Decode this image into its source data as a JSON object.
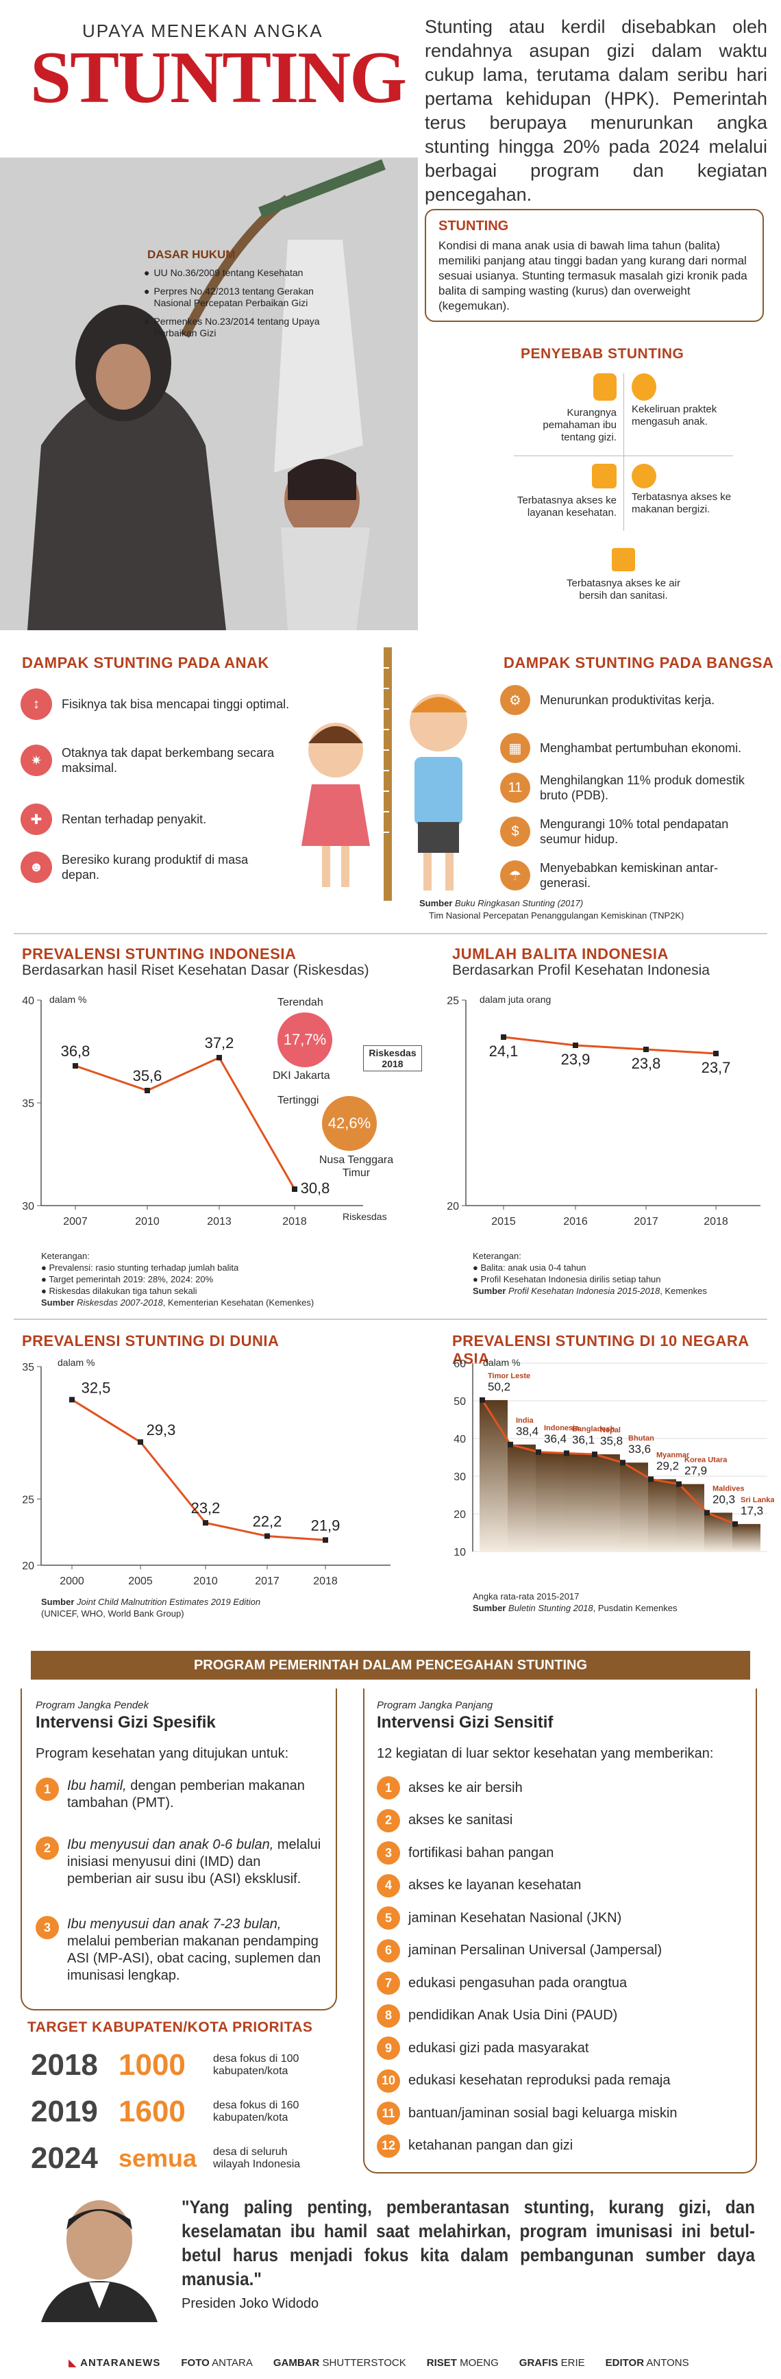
{
  "header": {
    "kicker": "UPAYA MENEKAN ANGKA",
    "title": "STUNTING",
    "intro": "Stunting atau kerdil disebabkan oleh rendahnya asupan gizi dalam waktu cukup lama, terutama dalam seribu hari pertama kehidupan (HPK). Pemerintah terus berupaya menurunkan angka stunting hingga 20% pada 2024 melalui berbagai program dan kegiatan pencegahan."
  },
  "dasar_hukum": {
    "title": "DASAR HUKUM",
    "items": [
      "UU No.36/2009 tentang Kesehatan",
      "Perpres No.42/2013 tentang Gerakan Nasional Percepatan Perbaikan Gizi",
      "Permenkes No.23/2014 tentang Upaya Perbaikan Gizi"
    ]
  },
  "definisi": {
    "title": "STUNTING",
    "text": "Kondisi di mana anak usia di bawah lima tahun (balita) memiliki panjang atau tinggi badan yang kurang dari normal sesuai usianya. Stunting termasuk masalah gizi kronik pada balita di samping wasting (kurus) dan overweight (kegemukan)."
  },
  "penyebab": {
    "title": "PENYEBAB STUNTING",
    "items": [
      "Kurangnya pemahaman ibu tentang gizi.",
      "Kekeliruan praktek mengasuh anak.",
      "Terbatasnya akses ke layanan kesehatan.",
      "Terbatasnya akses ke makanan bergizi.",
      "Terbatasnya akses ke air bersih dan sanitasi."
    ]
  },
  "dampak_anak": {
    "title": "DAMPAK STUNTING PADA ANAK",
    "items": [
      "Fisiknya tak bisa mencapai tinggi optimal.",
      "Otaknya tak dapat berkembang secara maksimal.",
      "Rentan terhadap penyakit.",
      "Beresiko kurang produktif di masa depan."
    ]
  },
  "dampak_bangsa": {
    "title": "DAMPAK STUNTING PADA BANGSA",
    "items": [
      "Menurunkan produktivitas kerja.",
      "Menghambat pertumbuhan ekonomi.",
      "Menghilangkan 11% produk domestik bruto (PDB).",
      "Mengurangi 10% total pendapatan seumur hidup.",
      "Menyebabkan kemiskinan antar-generasi."
    ],
    "sumber_label": "Sumber",
    "sumber": "Buku Ringkasan Stunting (2017)",
    "sumber2": "Tim Nasional Percepatan Penanggulangan Kemiskinan (TNP2K)"
  },
  "prevalensi_id": {
    "title": "PREVALENSI STUNTING INDONESIA",
    "subtitle": "Berdasarkan hasil Riset Kesehatan Dasar (Riskesdas)",
    "unit": "dalam %",
    "terendah_label": "Terendah",
    "terendah_value": "17,7%",
    "terendah_region": "DKI Jakarta",
    "tertinggi_label": "Tertinggi",
    "tertinggi_value": "42,6%",
    "tertinggi_region": "Nusa Tenggara Timur",
    "riskesdas_box": "Riskesdas 2018",
    "x_caption": "Riskesdas",
    "keterangan_title": "Keterangan:",
    "keterangan": [
      "Prevalensi: rasio stunting terhadap jumlah balita",
      "Target pemerintah 2019: 28%, 2024: 20%",
      "Riskesdas dilakukan tiga tahun sekali"
    ],
    "sumber_label": "Sumber",
    "sumber": "Riskesdas 2007-2018",
    "sumber2": ", Kementerian Kesehatan (Kemenkes)"
  },
  "jumlah_balita": {
    "title": "JUMLAH BALITA INDONESIA",
    "subtitle": "Berdasarkan Profil Kesehatan Indonesia",
    "unit": "dalam juta orang",
    "keterangan_title": "Keterangan:",
    "keterangan": [
      "Balita: anak usia 0-4 tahun",
      "Profil Kesehatan Indonesia dirilis setiap tahun"
    ],
    "sumber_label": "Sumber",
    "sumber": "Profil Kesehatan Indonesia 2015-2018",
    "sumber2": ", Kemenkes"
  },
  "dunia": {
    "title": "PREVALENSI STUNTING DI DUNIA",
    "unit": "dalam %",
    "sumber_label": "Sumber",
    "sumber": "Joint Child Malnutrition Estimates 2019 Edition",
    "sumber2": "(UNICEF, WHO, World Bank Group)"
  },
  "asia": {
    "title": "PREVALENSI STUNTING DI 10 NEGARA ASIA",
    "unit": "dalam %",
    "caption": "Angka rata-rata 2015-2017",
    "sumber_label": "Sumber",
    "sumber": "Buletin Stunting 2018",
    "sumber2": ", Pusdatin Kemenkes"
  },
  "chart_data": [
    {
      "type": "line",
      "title": "PREVALENSI STUNTING INDONESIA",
      "x": [
        "2007",
        "2010",
        "2013",
        "2018"
      ],
      "values": [
        36.8,
        35.6,
        37.2,
        30.8
      ],
      "labels": [
        "36,8",
        "35,6",
        "37,2",
        "30,8"
      ],
      "yticks": [
        "40",
        "35",
        "30"
      ],
      "ylim": [
        30,
        40
      ]
    },
    {
      "type": "line",
      "title": "JUMLAH BALITA INDONESIA",
      "x": [
        "2015",
        "2016",
        "2017",
        "2018"
      ],
      "values": [
        24.1,
        23.9,
        23.8,
        23.7
      ],
      "labels": [
        "24,1",
        "23,9",
        "23,8",
        "23,7"
      ],
      "yticks": [
        "25",
        "20"
      ],
      "ylim": [
        20,
        25
      ]
    },
    {
      "type": "line",
      "title": "PREVALENSI STUNTING DI DUNIA",
      "x": [
        "2000",
        "2005",
        "2010",
        "2017",
        "2018"
      ],
      "values": [
        32.5,
        29.3,
        23.2,
        22.2,
        21.9
      ],
      "labels": [
        "32,5",
        "29,3",
        "23,2",
        "22,2",
        "21,9"
      ],
      "yticks": [
        "35",
        "25",
        "20"
      ],
      "ylim": [
        20,
        35
      ]
    },
    {
      "type": "area",
      "title": "PREVALENSI STUNTING DI 10 NEGARA ASIA",
      "categories": [
        "Timor Leste",
        "India",
        "Indonesia",
        "Bangladesh",
        "Nepal",
        "Bhutan",
        "Myanmar",
        "Korea Utara",
        "Maldives",
        "Sri Lanka"
      ],
      "values": [
        50.2,
        38.4,
        36.4,
        36.1,
        35.8,
        33.6,
        29.2,
        27.9,
        20.3,
        17.3
      ],
      "labels": [
        "50,2",
        "38,4",
        "36,4",
        "36,1",
        "35,8",
        "33,6",
        "29,2",
        "27,9",
        "20,3",
        "17,3"
      ],
      "yticks": [
        "60",
        "50",
        "40",
        "30",
        "20",
        "10"
      ],
      "ylim": [
        10,
        60
      ]
    }
  ],
  "program": {
    "banner": "PROGRAM PEMERINTAH DALAM PENCEGAHAN STUNTING",
    "spesifik": {
      "kicker": "Program Jangka Pendek",
      "title": "Intervensi Gizi Spesifik",
      "lead": "Program kesehatan yang ditujukan untuk:",
      "items": [
        {
          "num": "1",
          "em": "Ibu hamil,",
          "text": " dengan pemberian makanan tambahan (PMT)."
        },
        {
          "num": "2",
          "em": "Ibu menyusui dan anak 0-6 bulan,",
          "text": " melalui inisiasi menyusui dini (IMD) dan pemberian air susu ibu (ASI) eksklusif."
        },
        {
          "num": "3",
          "em": "Ibu menyusui dan anak 7-23 bulan,",
          "text": " melalui pemberian makanan pendamping ASI (MP-ASI), obat cacing, suplemen dan imunisasi lengkap."
        }
      ]
    },
    "sensitif": {
      "kicker": "Program Jangka Panjang",
      "title": "Intervensi Gizi Sensitif",
      "lead": "12 kegiatan di luar sektor kesehatan yang memberikan:",
      "items": [
        {
          "num": "1",
          "text": "akses ke air bersih"
        },
        {
          "num": "2",
          "text": "akses ke sanitasi"
        },
        {
          "num": "3",
          "text": "fortifikasi bahan pangan"
        },
        {
          "num": "4",
          "text": "akses ke layanan kesehatan"
        },
        {
          "num": "5",
          "text": "jaminan Kesehatan Nasional (JKN)"
        },
        {
          "num": "6",
          "text": "jaminan Persalinan Universal (Jampersal)"
        },
        {
          "num": "7",
          "text": "edukasi pengasuhan pada orangtua"
        },
        {
          "num": "8",
          "text": "pendidikan Anak Usia Dini (PAUD)"
        },
        {
          "num": "9",
          "text": "edukasi gizi pada masyarakat"
        },
        {
          "num": "10",
          "text": "edukasi kesehatan reproduksi pada remaja"
        },
        {
          "num": "11",
          "text": "bantuan/jaminan sosial bagi keluarga miskin"
        },
        {
          "num": "12",
          "text": "ketahanan pangan dan gizi"
        }
      ]
    }
  },
  "target": {
    "title": "TARGET KABUPATEN/KOTA PRIORITAS",
    "rows": [
      {
        "year": "2018",
        "value": "1000",
        "desc": "desa fokus di 100 kabupaten/kota"
      },
      {
        "year": "2019",
        "value": "1600",
        "desc": "desa fokus di 160 kabupaten/kota"
      },
      {
        "year": "2024",
        "value": "semua",
        "desc": "desa di seluruh wilayah Indonesia"
      }
    ]
  },
  "quote": {
    "text": "\"Yang paling penting, pemberantasan stunting, kurang gizi, dan keselamatan ibu hamil saat melahirkan, program imunisasi ini betul-betul harus menjadi fokus kita dalam pembangunan sumber daya manusia.\"",
    "author": "Presiden Joko Widodo"
  },
  "footer": {
    "brand": "ANTARANEWS",
    "credits": [
      {
        "label": "FOTO",
        "value": "ANTARA"
      },
      {
        "label": "GAMBAR",
        "value": "SHUTTERSTOCK"
      },
      {
        "label": "RISET",
        "value": "MOENG"
      },
      {
        "label": "GRAFIS",
        "value": "ERIE"
      },
      {
        "label": "EDITOR",
        "value": "ANTONS"
      }
    ]
  },
  "colors": {
    "accent": "#c81d25",
    "orange": "#f08a2c",
    "brown": "#8b5a2b"
  }
}
